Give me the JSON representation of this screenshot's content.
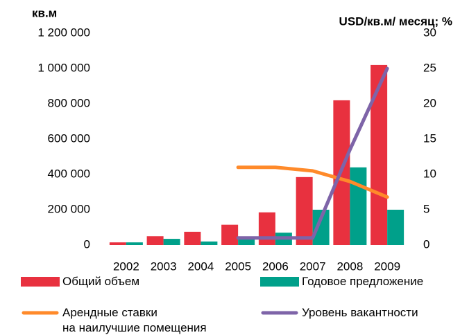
{
  "chart_data": {
    "type": "bar",
    "y_label": "кв.м",
    "y2_label": "USD/кв.м/ месяц; %",
    "categories": [
      "2002",
      "2003",
      "2004",
      "2005",
      "2006",
      "2007",
      "2008",
      "2009"
    ],
    "series": [
      {
        "name": "Общий объем",
        "color": "#e8313f",
        "type": "bar",
        "values": [
          15000,
          50000,
          75000,
          115000,
          185000,
          385000,
          820000,
          1020000
        ]
      },
      {
        "name": "Годовое предложение",
        "color": "#00a08a",
        "type": "bar",
        "values": [
          15000,
          35000,
          20000,
          40000,
          70000,
          200000,
          440000,
          200000
        ]
      },
      {
        "name": "Арендные ставки\nна наилучшие помещения",
        "color": "#ff8a2a",
        "type": "line",
        "axis": "y2",
        "values": [
          null,
          null,
          null,
          11,
          11,
          10.5,
          9,
          6.8
        ]
      },
      {
        "name": "Уровень вакантности",
        "color": "#7e64a8",
        "type": "line",
        "axis": "y2",
        "values": [
          null,
          null,
          null,
          1,
          1,
          1,
          13.5,
          25
        ]
      }
    ],
    "ylim": [
      0,
      1200000
    ],
    "yticks": [
      0,
      {
        "value": 200000,
        "label": "200 000"
      },
      {
        "value": 400000,
        "label": "400 000"
      },
      {
        "value": 600000,
        "label": "600 000"
      },
      {
        "value": 800000,
        "label": "800 000"
      },
      {
        "value": 1000000,
        "label": "1 000 000"
      },
      {
        "value": 1200000,
        "label": "1 200 000"
      }
    ],
    "y2lim": [
      0,
      30
    ],
    "y2ticks": [
      0,
      5,
      10,
      15,
      20,
      25,
      30
    ]
  }
}
